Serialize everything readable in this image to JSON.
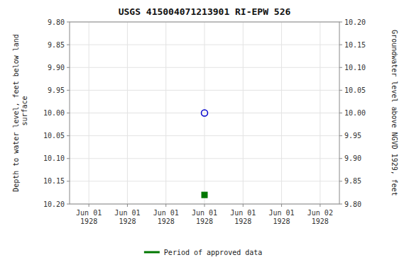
{
  "chart_data": {
    "type": "scatter",
    "title": "USGS 415004071213901 RI-EPW  526",
    "y_label": "Depth to water level, feet below land\n surface",
    "y2_label": "Groundwater level above NGVD 1929, feet",
    "categories": [
      "Jun 01\n1928",
      "Jun 01\n1928",
      "Jun 01\n1928",
      "Jun 01\n1928",
      "Jun 01\n1928",
      "Jun 01\n1928",
      "Jun 02\n1928"
    ],
    "series": [
      {
        "color": "#0000cc",
        "marker": "circle-open",
        "values": [
          null,
          null,
          null,
          10.0,
          null,
          null,
          null
        ]
      },
      {
        "name": "Period of approved data",
        "color": "#007700",
        "marker": "square",
        "values": [
          null,
          null,
          null,
          10.18,
          null,
          null,
          null
        ]
      }
    ],
    "ylim": [
      10.2,
      9.8
    ],
    "yticks": [
      {
        "value": 9.8,
        "label": "9.80"
      },
      9.85,
      {
        "value": 9.9,
        "label": "9.90"
      },
      9.95,
      {
        "value": 10.0,
        "label": "10.00"
      },
      10.05,
      {
        "value": 10.1,
        "label": "10.10"
      },
      10.15,
      {
        "value": 10.2,
        "label": "10.20"
      }
    ],
    "y2lim": [
      9.8,
      10.2
    ],
    "y2ticks": [
      {
        "value": 9.8,
        "label": "9.80"
      },
      9.85,
      {
        "value": 9.9,
        "label": "9.90"
      },
      9.95,
      {
        "value": 10.0,
        "label": "10.00"
      },
      10.05,
      {
        "value": 10.1,
        "label": "10.10"
      },
      10.15,
      {
        "value": 10.2,
        "label": "10.20"
      }
    ],
    "grid": true,
    "legend": "bottom"
  }
}
